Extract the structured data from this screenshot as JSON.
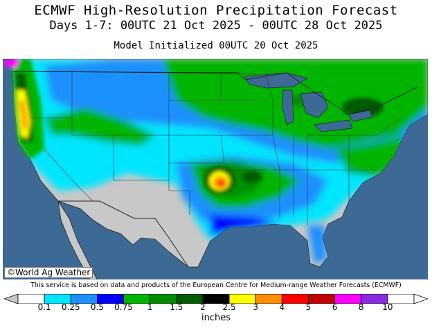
{
  "title": "ECMWF High-Resolution Precipitation Forecast",
  "subtitle": "Days 1-7: 00UTC 21 Oct 2025 - 00UTC 28 Oct 2025",
  "init": "Model Initialized 00UTC 20 Oct 2025",
  "credit": "©World Ag Weather",
  "disclaimer": "This service is based on data and products of the European Centre for Medium-range Weather Forecasts (ECMWF)",
  "legend": {
    "unit": "inches",
    "labels": [
      "0.1",
      "0.25",
      "0.5",
      "0.75",
      "1",
      "1.5",
      "2",
      "2.5",
      "3",
      "4",
      "5",
      "6",
      "8",
      "10"
    ],
    "colors": [
      "#ffffff",
      "#00e5ff",
      "#1e90ff",
      "#0000ff",
      "#00b400",
      "#008c00",
      "#005a00",
      "#000000",
      "#ffff00",
      "#ff8c00",
      "#ff0000",
      "#c00000",
      "#ff00ff",
      "#8a2be2",
      "#ffffff"
    ]
  },
  "map_colors": {
    "ocean": "#3c6a94",
    "land": "#c8c8c8",
    "great_lakes": "#3c6a94"
  }
}
